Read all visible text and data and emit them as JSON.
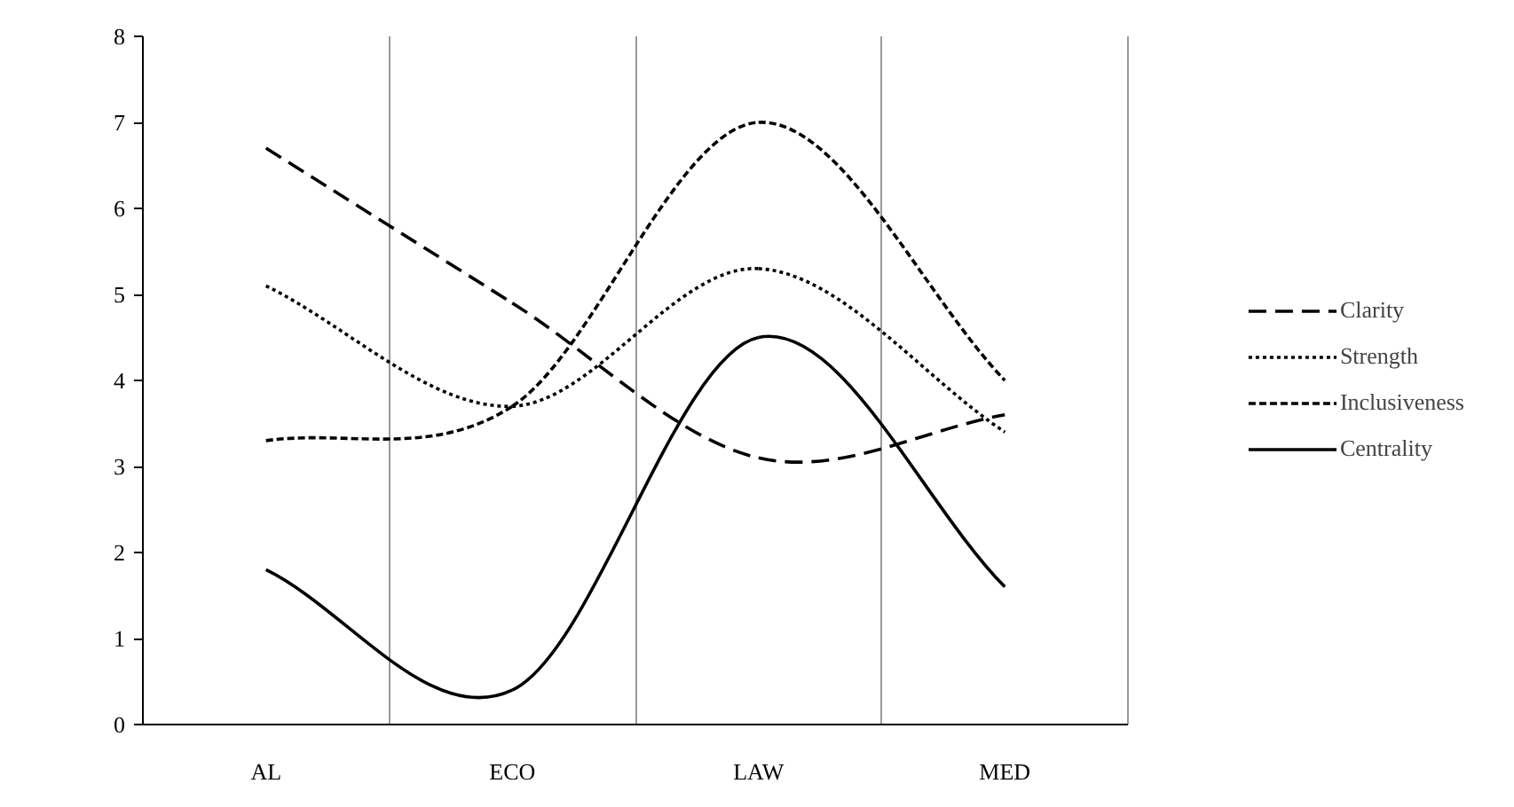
{
  "chart_data": {
    "type": "line",
    "categories": [
      "AL",
      "ECO",
      "LAW",
      "MED"
    ],
    "series": [
      {
        "name": "Clarity",
        "color": "#000000",
        "line_style": "dashed",
        "values": [
          6.7,
          4.9,
          3.1,
          3.6
        ]
      },
      {
        "name": "Strength",
        "color": "#000000",
        "line_style": "dotted",
        "values": [
          5.1,
          3.7,
          5.3,
          3.4
        ]
      },
      {
        "name": "Inclusiveness",
        "color": "#000000",
        "line_style": "dashed",
        "values": [
          3.3,
          3.7,
          7.0,
          4.0
        ]
      },
      {
        "name": "Centrality",
        "color": "#000000",
        "line_style": "solid",
        "values": [
          1.8,
          0.4,
          4.5,
          1.6
        ]
      }
    ],
    "ylim": [
      0,
      8
    ],
    "yticks": [
      0,
      1,
      2,
      3,
      4,
      5,
      6,
      7,
      8
    ],
    "grid": "x",
    "legend": "right",
    "marker": "none"
  }
}
